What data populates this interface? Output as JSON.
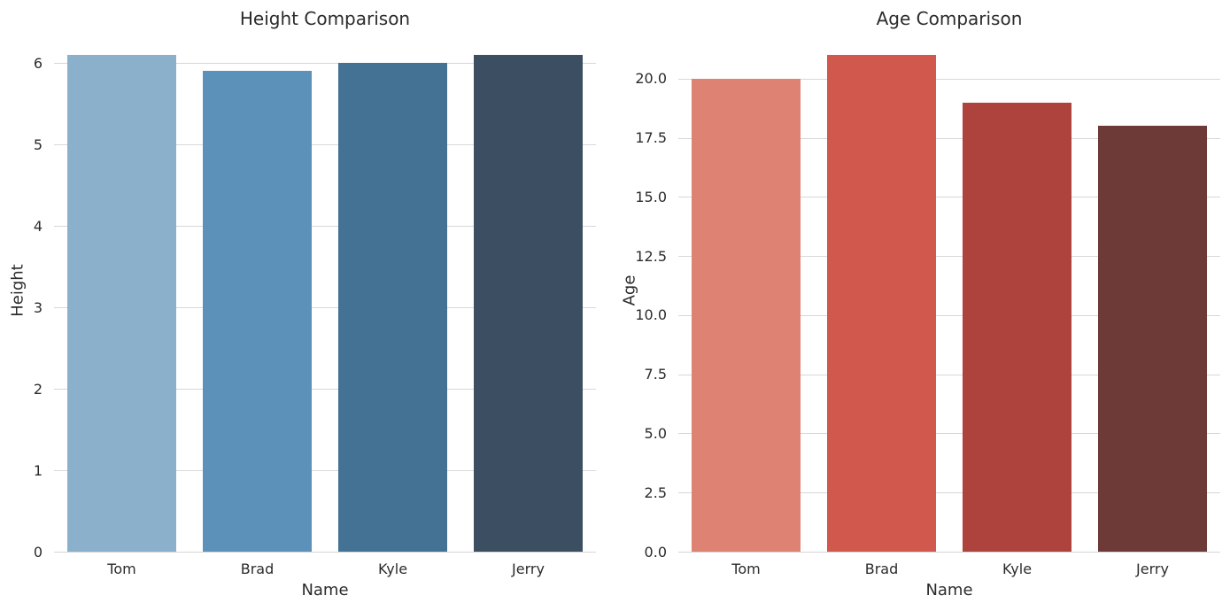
{
  "figure": {
    "background_color": "#ffffff",
    "grid_color": "#d7d7d7",
    "text_color": "#2b2b2b"
  },
  "chart_data": [
    {
      "type": "bar",
      "title": "Height Comparison",
      "xlabel": "Name",
      "ylabel": "Height",
      "categories": [
        "Tom",
        "Brad",
        "Kyle",
        "Jerry"
      ],
      "values": [
        6.1,
        5.9,
        6.0,
        6.1
      ],
      "bar_colors": [
        "#8bb0cb",
        "#5c92ba",
        "#437294",
        "#3c4e61"
      ],
      "ylim": [
        0,
        6.405
      ],
      "yticks": [
        0,
        1,
        2,
        3,
        4,
        5,
        6
      ],
      "ytick_format": "int",
      "grid": true,
      "legend": null
    },
    {
      "type": "bar",
      "title": "Age Comparison",
      "xlabel": "Name",
      "ylabel": "Age",
      "categories": [
        "Tom",
        "Brad",
        "Kyle",
        "Jerry"
      ],
      "values": [
        20,
        21,
        19,
        18
      ],
      "bar_colors": [
        "#de8274",
        "#d0584c",
        "#ae423c",
        "#6e3a37"
      ],
      "ylim": [
        0,
        22.05
      ],
      "yticks": [
        0,
        2.5,
        5,
        7.5,
        10,
        12.5,
        15,
        17.5,
        20
      ],
      "ytick_format": "1dp",
      "grid": true,
      "legend": null
    }
  ]
}
